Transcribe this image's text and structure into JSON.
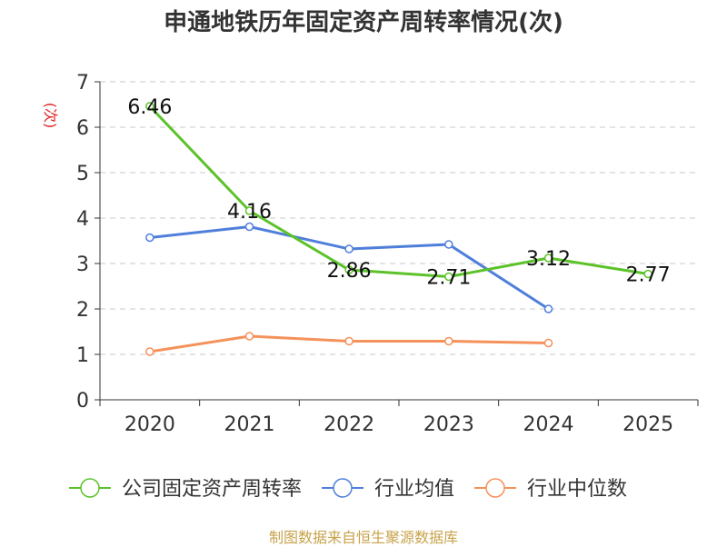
{
  "chart_data": {
    "type": "line",
    "title": "申通地铁历年固定资产周转率情况(次)",
    "ylabel": "(次)",
    "categories": [
      "2020",
      "2021",
      "2022",
      "2023",
      "2024",
      "2025"
    ],
    "ylim": [
      0,
      7
    ],
    "yticks": [
      0,
      1,
      2,
      3,
      4,
      5,
      6,
      7
    ],
    "grid": true,
    "legend_position": "bottom",
    "series": [
      {
        "name": "公司固定资产周转率",
        "color": "#5cc22a",
        "values": [
          6.46,
          4.16,
          2.86,
          2.71,
          3.12,
          2.77
        ],
        "labels": [
          "6.46",
          "4.16",
          "2.86",
          "2.71",
          "3.12",
          "2.77"
        ]
      },
      {
        "name": "行业均值",
        "color": "#4f7fdb",
        "values": [
          3.57,
          3.81,
          3.32,
          3.42,
          2.0,
          null
        ]
      },
      {
        "name": "行业中位数",
        "color": "#f5915a",
        "values": [
          1.06,
          1.4,
          1.29,
          1.29,
          1.25,
          null
        ]
      }
    ]
  },
  "footer": {
    "source": "制图数据来自恒生聚源数据库"
  }
}
